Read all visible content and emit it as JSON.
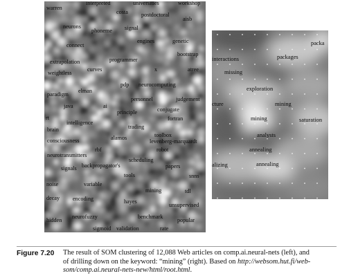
{
  "left_map": {
    "words": [
      "warren",
      "interpreted",
      "universities",
      "workshop",
      "costa",
      "postdoctoral",
      "aisb",
      "neurons",
      "phoneme",
      "signal",
      "connect",
      "engines",
      "genetic",
      "bootstrap",
      "extrapolation",
      "programmer",
      "curves",
      "x",
      "atree",
      "weightless",
      "pdp",
      "neurocomputing",
      "paradigm",
      "elman",
      "personnel",
      "judgement",
      "java",
      "ai",
      "principle",
      "conjugate",
      "rt",
      "intelligence",
      "fortran",
      "brain",
      "trading",
      "alamos",
      "toolbox",
      "consciousness",
      "levenberg-marquardt",
      "rbf",
      "robot",
      "neurotransmitters",
      "scheduling",
      "signals",
      "backpropagator's",
      "papers",
      "tools",
      "snns",
      "noise",
      "variable",
      "mining",
      "tdl",
      "decay",
      "encoding",
      "hayes",
      "unsupervised",
      "hidden",
      "neurofuzzy",
      "benchmark",
      "popular",
      "sigmoid",
      "validation",
      "rate"
    ]
  },
  "right_map": {
    "words": [
      "packa",
      "interactions",
      "packages",
      "missing",
      "exploration",
      "cture",
      "mining",
      "mining",
      "saturation",
      "analysts",
      "annealing",
      "alizing",
      "annealing"
    ]
  },
  "caption": {
    "label": "Figure 7.20",
    "line1": "The result of SOM clustering of 12,088 Web articles on comp.ai.neural-nets (left), and",
    "line2": "of drilling down on the keyword: “mining” (right). Based on",
    "link1": "http://websom.hut.fi/web-",
    "link2": "som/comp.ai.neural-nets-new/html/root.html",
    "period": "."
  }
}
